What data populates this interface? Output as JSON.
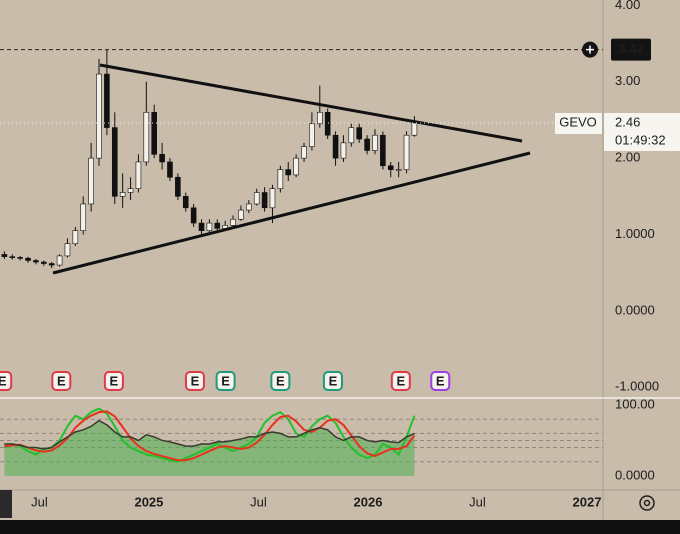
{
  "chart_data": [
    {
      "type": "candlestick",
      "symbol": "GEVO",
      "last_price": 2.46,
      "countdown": "01:49:32",
      "high_line": 3.42,
      "up_color": "#f4f1ea",
      "down_color": "#111111",
      "x": [
        2024.34,
        2024.376,
        2024.412,
        2024.448,
        2024.484,
        2024.52,
        2024.556,
        2024.592,
        2024.628,
        2024.664,
        2024.7,
        2024.736,
        2024.772,
        2024.808,
        2024.844,
        2024.88,
        2024.916,
        2024.952,
        2024.988,
        2025.024,
        2025.06,
        2025.096,
        2025.132,
        2025.168,
        2025.204,
        2025.24,
        2025.276,
        2025.312,
        2025.348,
        2025.384,
        2025.42,
        2025.456,
        2025.492,
        2025.528,
        2025.564,
        2025.6,
        2025.636,
        2025.672,
        2025.708,
        2025.744,
        2025.78,
        2025.816,
        2025.852,
        2025.888,
        2025.924,
        2025.96,
        2025.996,
        2026.032,
        2026.068,
        2026.104,
        2026.14,
        2026.176,
        2026.212
      ],
      "open": [
        0.74,
        0.71,
        0.7,
        0.69,
        0.66,
        0.64,
        0.62,
        0.6,
        0.72,
        0.88,
        1.05,
        1.4,
        2.0,
        3.1,
        2.4,
        1.5,
        1.55,
        1.6,
        1.95,
        2.6,
        2.05,
        1.95,
        1.75,
        1.5,
        1.35,
        1.15,
        1.05,
        1.15,
        1.08,
        1.12,
        1.2,
        1.32,
        1.4,
        1.55,
        1.35,
        1.6,
        1.85,
        1.78,
        2.0,
        2.15,
        2.45,
        2.6,
        2.3,
        2.0,
        2.2,
        2.4,
        2.25,
        2.1,
        2.3,
        1.9,
        1.85,
        1.85,
        2.3
      ],
      "high": [
        0.78,
        0.74,
        0.72,
        0.71,
        0.68,
        0.66,
        0.64,
        0.74,
        0.95,
        1.1,
        1.5,
        2.2,
        3.3,
        3.42,
        2.6,
        1.8,
        1.75,
        2.05,
        3.0,
        2.7,
        2.2,
        2.0,
        1.8,
        1.55,
        1.4,
        1.2,
        1.2,
        1.2,
        1.18,
        1.25,
        1.38,
        1.45,
        1.6,
        1.62,
        1.65,
        1.9,
        1.95,
        2.05,
        2.2,
        2.6,
        2.95,
        2.65,
        2.35,
        2.3,
        2.45,
        2.45,
        2.3,
        2.38,
        2.35,
        1.95,
        1.95,
        2.35,
        2.55
      ],
      "low": [
        0.68,
        0.67,
        0.66,
        0.63,
        0.61,
        0.59,
        0.56,
        0.58,
        0.7,
        0.85,
        1.0,
        1.3,
        1.9,
        2.3,
        1.4,
        1.35,
        1.45,
        1.55,
        1.9,
        2.0,
        1.85,
        1.7,
        1.45,
        1.3,
        1.1,
        1.0,
        1.0,
        1.02,
        1.05,
        1.1,
        1.18,
        1.28,
        1.38,
        1.3,
        1.15,
        1.55,
        1.7,
        1.75,
        1.95,
        2.1,
        2.4,
        2.25,
        1.9,
        1.95,
        2.15,
        2.2,
        2.05,
        2.05,
        1.85,
        1.75,
        1.75,
        1.8,
        2.28
      ],
      "close": [
        0.71,
        0.7,
        0.69,
        0.66,
        0.64,
        0.62,
        0.6,
        0.72,
        0.88,
        1.05,
        1.4,
        2.0,
        3.1,
        2.4,
        1.5,
        1.55,
        1.6,
        1.95,
        2.6,
        2.05,
        1.95,
        1.75,
        1.5,
        1.35,
        1.15,
        1.05,
        1.15,
        1.08,
        1.12,
        1.2,
        1.32,
        1.4,
        1.55,
        1.35,
        1.6,
        1.85,
        1.78,
        2.0,
        2.15,
        2.45,
        2.6,
        2.3,
        2.0,
        2.2,
        2.4,
        2.25,
        2.1,
        2.3,
        1.9,
        1.85,
        1.85,
        2.3,
        2.46
      ],
      "xlim": [
        2024.32,
        2027.073
      ],
      "xticks": [
        {
          "value": 2024.5,
          "label": "Jul"
        },
        2025,
        {
          "value": 2025.5,
          "label": "Jul"
        },
        2026,
        {
          "value": 2026.5,
          "label": "Jul"
        },
        2027
      ],
      "ylim": [
        -1.14,
        4.07
      ],
      "yticks": [
        {
          "value": 4,
          "label": "4.00"
        },
        {
          "value": 3,
          "label": "3.00"
        },
        {
          "value": 2,
          "label": "2.00"
        },
        {
          "value": 1,
          "label": "1.0000"
        },
        {
          "value": 0,
          "label": "0.0000"
        },
        {
          "value": -1,
          "label": "-1.0000"
        }
      ],
      "events": [
        {
          "x": 2024.33,
          "label": "E",
          "color": "#e0394a"
        },
        {
          "x": 2024.6,
          "label": "E",
          "color": "#e0394a"
        },
        {
          "x": 2024.84,
          "label": "E",
          "color": "#e0394a"
        },
        {
          "x": 2025.21,
          "label": "E",
          "color": "#e0394a"
        },
        {
          "x": 2025.35,
          "label": "E",
          "color": "#1f9a7a"
        },
        {
          "x": 2025.6,
          "label": "E",
          "color": "#1f9a7a"
        },
        {
          "x": 2025.84,
          "label": "E",
          "color": "#1f9a7a"
        },
        {
          "x": 2026.15,
          "label": "E",
          "color": "#e0394a"
        },
        {
          "x": 2026.33,
          "label": "E",
          "color": "#9c3fe0"
        }
      ]
    },
    {
      "type": "line",
      "ylim": [
        -20,
        110
      ],
      "yticks": [
        {
          "value": 100,
          "label": "100.00"
        },
        {
          "value": 0,
          "label": "0.0000"
        }
      ],
      "levels": [
        80,
        60,
        50,
        40,
        20
      ],
      "fill_color": "#4caf50",
      "series": [
        {
          "color": "#22c02a",
          "values": [
            40,
            45,
            42,
            35,
            30,
            38,
            40,
            50,
            70,
            85,
            80,
            90,
            95,
            88,
            70,
            50,
            40,
            35,
            30,
            28,
            25,
            22,
            20,
            25,
            30,
            35,
            40,
            45,
            40,
            35,
            40,
            45,
            55,
            75,
            85,
            90,
            80,
            60,
            55,
            70,
            80,
            85,
            75,
            55,
            40,
            30,
            25,
            30,
            45,
            40,
            30,
            55,
            85
          ]
        },
        {
          "color": "#e8321e",
          "values": [
            42,
            43,
            44,
            40,
            36,
            34,
            36,
            43,
            53,
            68,
            78,
            85,
            90,
            91,
            84,
            69,
            53,
            42,
            35,
            31,
            28,
            25,
            22,
            22,
            25,
            30,
            35,
            40,
            42,
            40,
            38,
            40,
            47,
            58,
            72,
            83,
            85,
            77,
            65,
            62,
            68,
            78,
            80,
            72,
            57,
            42,
            32,
            28,
            33,
            38,
            38,
            42,
            57
          ]
        },
        {
          "color": "#3a3a30",
          "values": [
            45,
            45,
            43,
            40,
            40,
            38,
            40,
            48,
            55,
            62,
            65,
            70,
            78,
            72,
            62,
            55,
            55,
            50,
            58,
            55,
            50,
            48,
            45,
            42,
            42,
            45,
            45,
            48,
            48,
            50,
            52,
            55,
            55,
            60,
            62,
            60,
            55,
            55,
            60,
            65,
            68,
            65,
            55,
            50,
            55,
            55,
            50,
            48,
            50,
            48,
            47,
            55,
            60
          ]
        }
      ]
    }
  ]
}
